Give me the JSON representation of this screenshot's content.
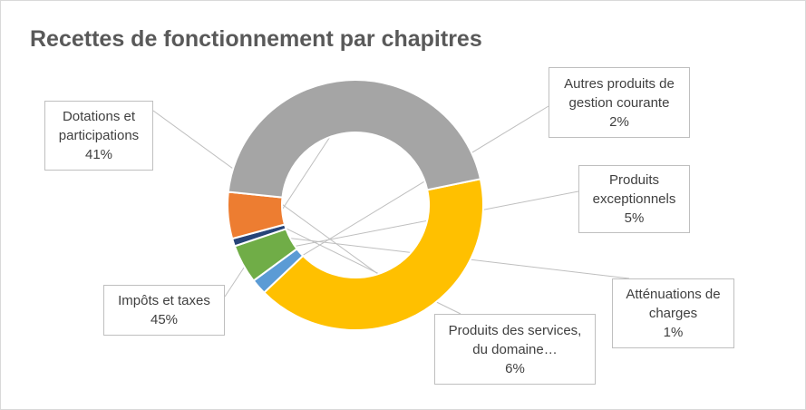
{
  "chart_data": {
    "type": "pie",
    "variant": "doughnut",
    "title": "Recettes de fonctionnement par chapitres",
    "legend": "none",
    "slices": [
      {
        "label": "Dotations et participations",
        "label_lines": [
          "Dotations et",
          "participations"
        ],
        "value": 41,
        "pct_label": "41%",
        "color": "#FFC000"
      },
      {
        "label": "Autres produits de gestion courante",
        "label_lines": [
          "Autres produits de",
          "gestion courante"
        ],
        "value": 2,
        "pct_label": "2%",
        "color": "#5B9BD5"
      },
      {
        "label": "Produits exceptionnels",
        "label_lines": [
          "Produits",
          "exceptionnels"
        ],
        "value": 5,
        "pct_label": "5%",
        "color": "#70AD47"
      },
      {
        "label": "Atténuations de charges",
        "label_lines": [
          "Atténuations de",
          "charges"
        ],
        "value": 1,
        "pct_label": "1%",
        "color": "#264478"
      },
      {
        "label": "Produits des services, du domaine…",
        "label_lines": [
          "Produits des services,",
          "du domaine…"
        ],
        "value": 6,
        "pct_label": "6%",
        "color": "#ED7D31"
      },
      {
        "label": "Impôts et taxes",
        "label_lines": [
          "Impôts et taxes"
        ],
        "value": 45,
        "pct_label": "45%",
        "color": "#A5A5A5"
      }
    ]
  }
}
